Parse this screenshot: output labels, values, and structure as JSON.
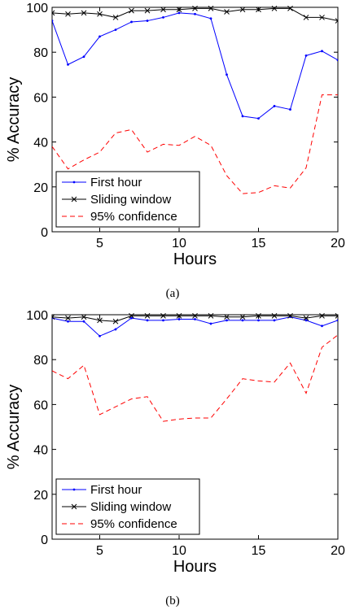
{
  "chart_data": [
    {
      "type": "line",
      "caption": "(a)",
      "xlabel": "Hours",
      "ylabel": "% Accuracy",
      "xlim": [
        2,
        20
      ],
      "ylim": [
        0,
        100
      ],
      "xticks": [
        5,
        10,
        15,
        20
      ],
      "yticks": [
        0,
        20,
        40,
        60,
        80,
        100
      ],
      "legend_position": "bottom-left",
      "grid": false,
      "x": [
        2,
        3,
        4,
        5,
        6,
        7,
        8,
        9,
        10,
        11,
        12,
        13,
        14,
        15,
        16,
        17,
        18,
        19,
        20
      ],
      "series": [
        {
          "name": "First hour",
          "color": "#0000ff",
          "style": "solid",
          "marker": "point",
          "values": [
            94,
            74.5,
            78,
            87,
            90,
            93.5,
            94,
            95.5,
            97.5,
            97,
            95,
            70,
            51.5,
            50.5,
            56,
            54.5,
            78.5,
            80.5,
            76.5
          ]
        },
        {
          "name": "Sliding window",
          "color": "#000000",
          "style": "solid",
          "marker": "x",
          "values": [
            97.5,
            97,
            97.5,
            97,
            95.5,
            98.5,
            98.5,
            99,
            99,
            99.5,
            99.5,
            98,
            99,
            99,
            99.5,
            99.5,
            95.5,
            95.5,
            94
          ]
        },
        {
          "name": "95% confidence",
          "color": "#ff0000",
          "style": "dashed",
          "marker": "none",
          "values": [
            38,
            28,
            32,
            35.5,
            44,
            45.5,
            35.5,
            39,
            38.5,
            42.5,
            38.5,
            25,
            17,
            17.5,
            20.5,
            19.5,
            28.5,
            61,
            61
          ]
        }
      ]
    },
    {
      "type": "line",
      "caption": "(b)",
      "xlabel": "Hours",
      "ylabel": "% Accuracy",
      "xlim": [
        2,
        20
      ],
      "ylim": [
        0,
        100
      ],
      "xticks": [
        5,
        10,
        15,
        20
      ],
      "yticks": [
        0,
        20,
        40,
        60,
        80,
        100
      ],
      "legend_position": "bottom-left",
      "grid": false,
      "x": [
        2,
        3,
        4,
        5,
        6,
        7,
        8,
        9,
        10,
        11,
        12,
        13,
        14,
        15,
        16,
        17,
        18,
        19,
        20
      ],
      "series": [
        {
          "name": "First hour",
          "color": "#0000ff",
          "style": "solid",
          "marker": "point",
          "values": [
            98.5,
            97,
            97,
            90.5,
            93.5,
            98.5,
            97.5,
            97.5,
            98,
            98,
            96,
            97.5,
            97.5,
            97.5,
            97.5,
            99,
            97.5,
            95,
            97.5
          ]
        },
        {
          "name": "Sliding window",
          "color": "#000000",
          "style": "solid",
          "marker": "x",
          "values": [
            99,
            98.5,
            99,
            97.5,
            97,
            99.5,
            99.5,
            99.5,
            99.5,
            99.5,
            99.5,
            99,
            99,
            99.5,
            99.5,
            99.5,
            98.5,
            99.5,
            99.5
          ]
        },
        {
          "name": "95% confidence",
          "color": "#ff0000",
          "style": "dashed",
          "marker": "none",
          "values": [
            75,
            71.5,
            77.5,
            55.5,
            59,
            62.5,
            63.5,
            52.5,
            53.5,
            54,
            54,
            62.5,
            71.5,
            70.5,
            70,
            78.5,
            65,
            85.5,
            91
          ]
        }
      ]
    }
  ]
}
